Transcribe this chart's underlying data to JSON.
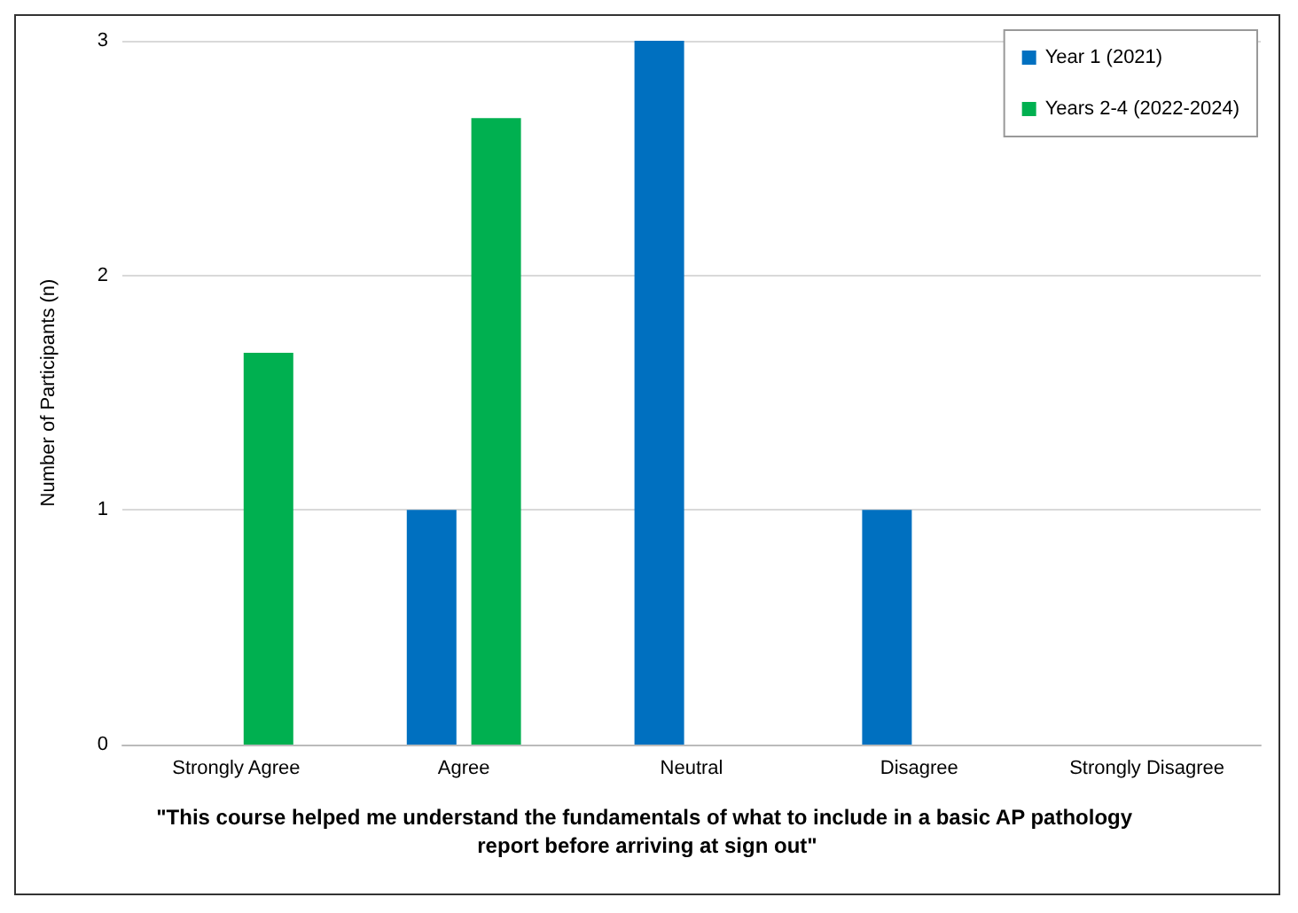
{
  "chart_data": {
    "type": "bar",
    "xlabel": "\"This course helped me understand the fundamentals of what to include in a basic AP pathology report before arriving at sign out\"",
    "ylabel": "Number of Participants (n)",
    "categories": [
      "Strongly Agree",
      "Agree",
      "Neutral",
      "Disagree",
      "Strongly Disagree"
    ],
    "series": [
      {
        "name": "Year 1 (2021)",
        "color": "#0070c0",
        "values": [
          0,
          1,
          3,
          1,
          0
        ]
      },
      {
        "name": "Years 2-4 (2022-2024)",
        "color": "#00b050",
        "values": [
          1.67,
          2.67,
          0,
          0,
          0
        ]
      }
    ],
    "ylim": [
      0,
      3
    ],
    "yticks": [
      0,
      1,
      2,
      3
    ],
    "grid": "y",
    "legend": "top right"
  }
}
